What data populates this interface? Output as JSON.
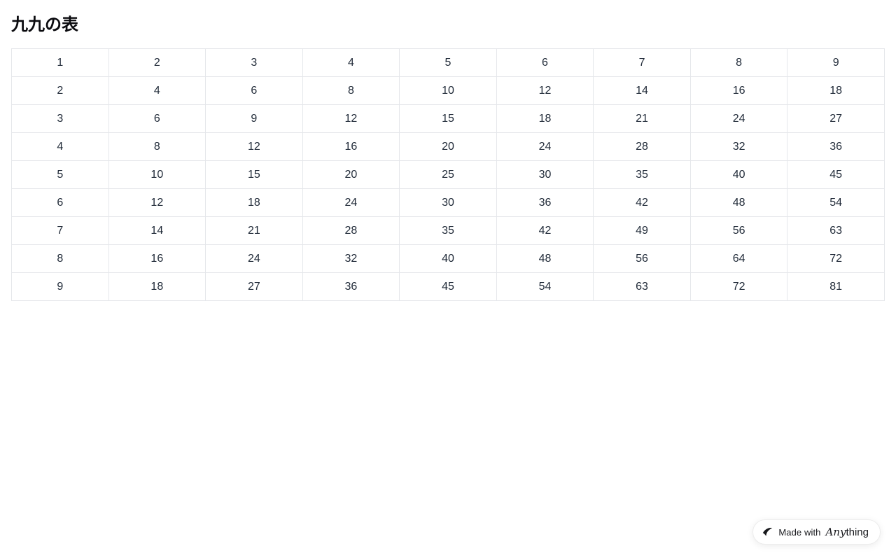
{
  "page": {
    "title": "九九の表"
  },
  "table": {
    "rows": [
      [
        1,
        2,
        3,
        4,
        5,
        6,
        7,
        8,
        9
      ],
      [
        2,
        4,
        6,
        8,
        10,
        12,
        14,
        16,
        18
      ],
      [
        3,
        6,
        9,
        12,
        15,
        18,
        21,
        24,
        27
      ],
      [
        4,
        8,
        12,
        16,
        20,
        24,
        28,
        32,
        36
      ],
      [
        5,
        10,
        15,
        20,
        25,
        30,
        35,
        40,
        45
      ],
      [
        6,
        12,
        18,
        24,
        30,
        36,
        42,
        48,
        54
      ],
      [
        7,
        14,
        21,
        28,
        35,
        42,
        49,
        56,
        63
      ],
      [
        8,
        16,
        24,
        32,
        40,
        48,
        56,
        64,
        72
      ],
      [
        9,
        18,
        27,
        36,
        45,
        54,
        63,
        72,
        81
      ]
    ]
  },
  "badge": {
    "prefix": "Made with",
    "brand_italic": "Any",
    "brand_rest": "thing"
  },
  "colors": {
    "border": "#e5e7eb",
    "cell_text": "#1f2937",
    "title_text": "#0b0b0f",
    "badge_bg": "#ffffff",
    "badge_icon": "#17181c"
  }
}
